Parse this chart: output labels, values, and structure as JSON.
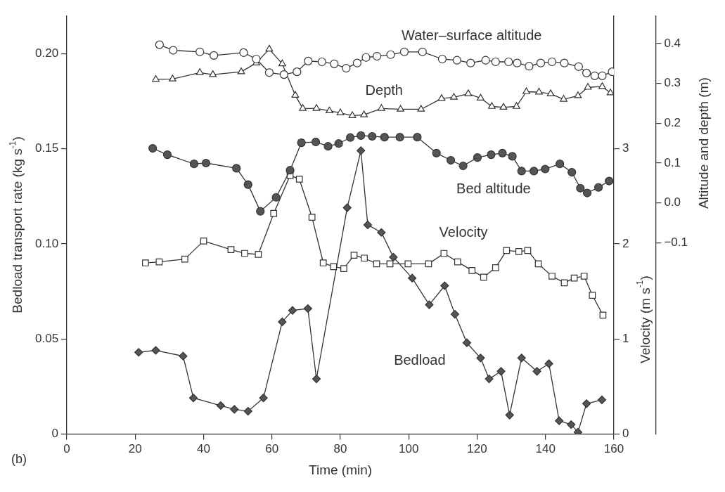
{
  "chart_data": {
    "type": "line",
    "xlabel": "Time (min)",
    "ylabel": "Bedload transport rate (kg s$^{-1}$)",
    "y2label": "Velocity (m s$^{-1}$)",
    "y3label": "Altitude and depth (m)",
    "xlim": [
      0,
      160
    ],
    "xticks": [
      0,
      20,
      40,
      60,
      80,
      100,
      120,
      140,
      160
    ],
    "ylim": [
      0,
      0.22
    ],
    "yticks": [
      0,
      0.05,
      {
        "value": 0.1,
        "label": "0.10"
      },
      0.15,
      {
        "value": 0.2,
        "label": "0.20"
      }
    ],
    "y2lim": [
      0,
      4.4
    ],
    "y2ticks": [
      0,
      1,
      2,
      3
    ],
    "y3lim": [
      -0.58,
      0.47
    ],
    "y3ticks": [
      {
        "value": -0.1,
        "label": "−0.1"
      },
      {
        "value": 0,
        "label": "0.0"
      },
      0.1,
      0.2,
      0.3,
      0.4
    ],
    "grid": false,
    "legend": false,
    "annotations": [
      "(b)"
    ],
    "series": [
      {
        "name": "Water–surface altitude",
        "axis": "y3",
        "color": "#ffffff",
        "marker": "circle",
        "x": [
          27.1,
          31.1,
          38.9,
          43,
          51.7,
          55.4,
          59.2,
          63.5,
          67.3,
          70.6,
          74.6,
          78.2,
          81.7,
          84.9,
          87.5,
          90.7,
          94.7,
          98.7,
          104,
          109.8,
          114.1,
          118.1,
          122.5,
          125.4,
          129.2,
          131.7,
          135.2,
          138.6,
          141.9,
          145.5,
          149.7,
          152,
          154.4,
          156.6,
          159.5
        ],
        "values": [
          0.397,
          0.383,
          0.379,
          0.37,
          0.377,
          0.361,
          0.327,
          0.322,
          0.329,
          0.356,
          0.354,
          0.349,
          0.338,
          0.351,
          0.365,
          0.368,
          0.372,
          0.379,
          0.379,
          0.361,
          0.358,
          0.351,
          0.358,
          0.354,
          0.354,
          0.351,
          0.343,
          0.351,
          0.354,
          0.351,
          0.342,
          0.326,
          0.319,
          0.319,
          0.329
        ]
      },
      {
        "name": "Depth",
        "axis": "y3",
        "color": "#ffffff",
        "marker": "triangle",
        "x": [
          26,
          30.9,
          38.9,
          42.7,
          51,
          55.4,
          59.2,
          63,
          66.8,
          69,
          73,
          76.8,
          80,
          83.5,
          86.9,
          92,
          97.6,
          103.6,
          109.6,
          113.2,
          117.4,
          121,
          124.3,
          127.7,
          131.5,
          134.4,
          138.1,
          141.5,
          145.3,
          149.5,
          152.4,
          156.6,
          159
        ],
        "values": [
          0.31,
          0.311,
          0.327,
          0.322,
          0.329,
          0.351,
          0.386,
          0.349,
          0.27,
          0.237,
          0.237,
          0.231,
          0.226,
          0.219,
          0.221,
          0.237,
          0.235,
          0.235,
          0.262,
          0.265,
          0.274,
          0.263,
          0.242,
          0.24,
          0.242,
          0.279,
          0.278,
          0.274,
          0.26,
          0.269,
          0.29,
          0.292,
          0.276
        ]
      },
      {
        "name": "Bed altitude",
        "axis": "y3",
        "color": "#555555",
        "marker": "circle",
        "x": [
          25.1,
          29.4,
          37.2,
          40.7,
          49.6,
          53,
          56.6,
          61.2,
          65.3,
          68.6,
          72.8,
          76.4,
          79.5,
          82.9,
          86,
          89.3,
          92.9,
          97.4,
          102.5,
          108.1,
          112.3,
          115.9,
          120.1,
          124.1,
          127.4,
          130.3,
          133,
          136.6,
          139.9,
          144.2,
          147.7,
          150.2,
          152.2,
          155.5,
          158.6
        ],
        "values": [
          0.137,
          0.121,
          0.098,
          0.1,
          0.087,
          0.046,
          -0.021,
          0.014,
          0.082,
          0.151,
          0.153,
          0.142,
          0.149,
          0.164,
          0.169,
          0.167,
          0.165,
          0.165,
          0.165,
          0.125,
          0.107,
          0.093,
          0.114,
          0.121,
          0.125,
          0.117,
          0.08,
          0.08,
          0.085,
          0.098,
          0.077,
          0.037,
          0.025,
          0.039,
          0.055
        ]
      },
      {
        "name": "Velocity",
        "axis": "y2",
        "color": "#ffffff",
        "marker": "square",
        "x": [
          23,
          27,
          34.5,
          40,
          48,
          52,
          56,
          60.5,
          65.3,
          68,
          71.7,
          75,
          78,
          81,
          84,
          87,
          90.6,
          94.5,
          99.8,
          105.8,
          110.3,
          114.3,
          118.5,
          121.9,
          125.4,
          128.6,
          132.2,
          134.8,
          137.9,
          141.9,
          145.5,
          148.4,
          151.3,
          153.7,
          156.8
        ],
        "values": [
          1.8,
          1.81,
          1.84,
          2.03,
          1.94,
          1.9,
          1.89,
          2.32,
          2.72,
          2.68,
          2.28,
          1.8,
          1.76,
          1.74,
          1.88,
          1.85,
          1.79,
          1.79,
          1.79,
          1.79,
          1.9,
          1.81,
          1.72,
          1.65,
          1.75,
          1.93,
          1.92,
          1.93,
          1.79,
          1.66,
          1.59,
          1.64,
          1.66,
          1.46,
          1.25
        ]
      },
      {
        "name": "Bedload",
        "axis": "y",
        "color": "#555555",
        "marker": "diamond",
        "x": [
          21,
          26,
          34,
          37,
          45,
          49,
          53,
          57.5,
          63,
          66,
          70.5,
          73,
          82,
          86,
          88,
          92,
          95.5,
          101,
          106,
          110.5,
          113.5,
          117,
          121,
          123.5,
          127,
          129.5,
          133,
          137.5,
          141,
          144,
          147.5,
          149.5,
          152,
          156.5
        ],
        "values": [
          0.043,
          0.044,
          0.041,
          0.019,
          0.015,
          0.013,
          0.012,
          0.019,
          0.059,
          0.065,
          0.066,
          0.029,
          0.119,
          0.149,
          0.11,
          0.106,
          0.093,
          0.082,
          0.068,
          0.078,
          0.063,
          0.048,
          0.04,
          0.029,
          0.033,
          0.01,
          0.04,
          0.033,
          0.037,
          0.007,
          0.005,
          0.001,
          0.016,
          0.018
        ]
      }
    ]
  }
}
